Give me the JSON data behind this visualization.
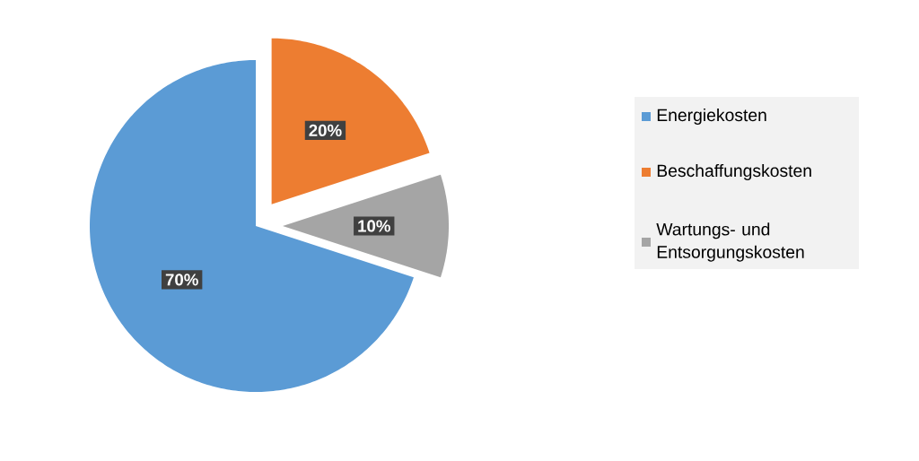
{
  "chart_data": {
    "type": "pie",
    "categories": [
      "Energiekosten",
      "Beschaffungskosten",
      "Wartungs- und Entsorgungskosten"
    ],
    "values": [
      70,
      20,
      10
    ],
    "colors": [
      "#5b9bd5",
      "#ed7d31",
      "#a5a5a5"
    ],
    "value_labels": [
      "70%",
      "20%",
      "10%"
    ],
    "legend": "right"
  }
}
